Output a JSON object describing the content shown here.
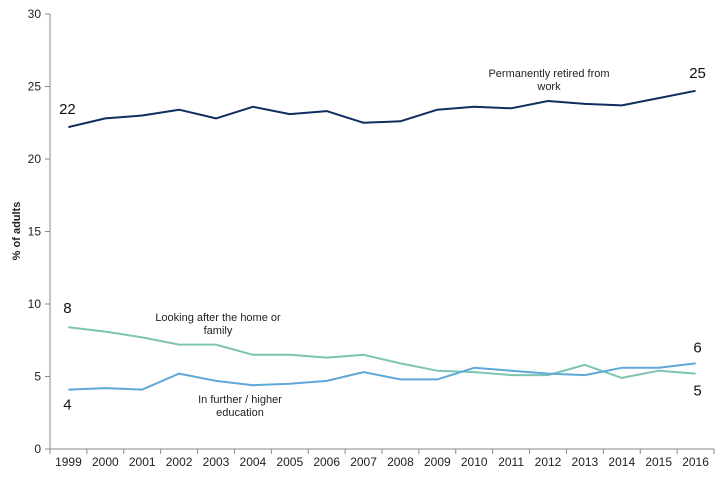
{
  "chart_data": {
    "type": "line",
    "title": "",
    "xlabel": "",
    "ylabel": "% of adults",
    "ylim": [
      0,
      30
    ],
    "yticks": [
      0,
      5,
      10,
      15,
      20,
      25,
      30
    ],
    "grid": false,
    "x": [
      "1999",
      "2000",
      "2001",
      "2002",
      "2003",
      "2004",
      "2005",
      "2006",
      "2007",
      "2008",
      "2009",
      "2010",
      "2011",
      "2012",
      "2013",
      "2014",
      "2015",
      "2016"
    ],
    "series": [
      {
        "name": "Permanently retired from work",
        "color": "#0f2d5e",
        "values": [
          22.2,
          22.8,
          23.0,
          23.4,
          22.8,
          23.6,
          23.1,
          23.3,
          22.5,
          22.6,
          23.4,
          23.6,
          23.5,
          24.0,
          23.8,
          23.7,
          24.2,
          24.7
        ],
        "start_label": "22",
        "end_label": "25"
      },
      {
        "name": "Looking after the home or family",
        "color": "#7ec4b4",
        "values": [
          8.4,
          8.1,
          7.7,
          7.2,
          7.2,
          6.5,
          6.5,
          6.3,
          6.5,
          5.9,
          5.4,
          5.3,
          5.1,
          5.1,
          5.8,
          4.9,
          5.4,
          5.2
        ],
        "start_label": "8",
        "end_label": "5"
      },
      {
        "name": "In further / higher education",
        "color": "#5fa8d8",
        "values": [
          4.1,
          4.2,
          4.1,
          5.2,
          4.7,
          4.4,
          4.5,
          4.7,
          5.3,
          4.8,
          4.8,
          5.6,
          5.4,
          5.2,
          5.1,
          5.6,
          5.6,
          5.9
        ],
        "start_label": "4",
        "end_label": "6"
      }
    ],
    "annotations": [
      {
        "series": 0,
        "lines": [
          "Permanently retired from",
          "work"
        ]
      },
      {
        "series": 1,
        "lines": [
          "Looking after the home or",
          "family"
        ]
      },
      {
        "series": 2,
        "lines": [
          "In further / higher",
          "education"
        ]
      }
    ]
  }
}
